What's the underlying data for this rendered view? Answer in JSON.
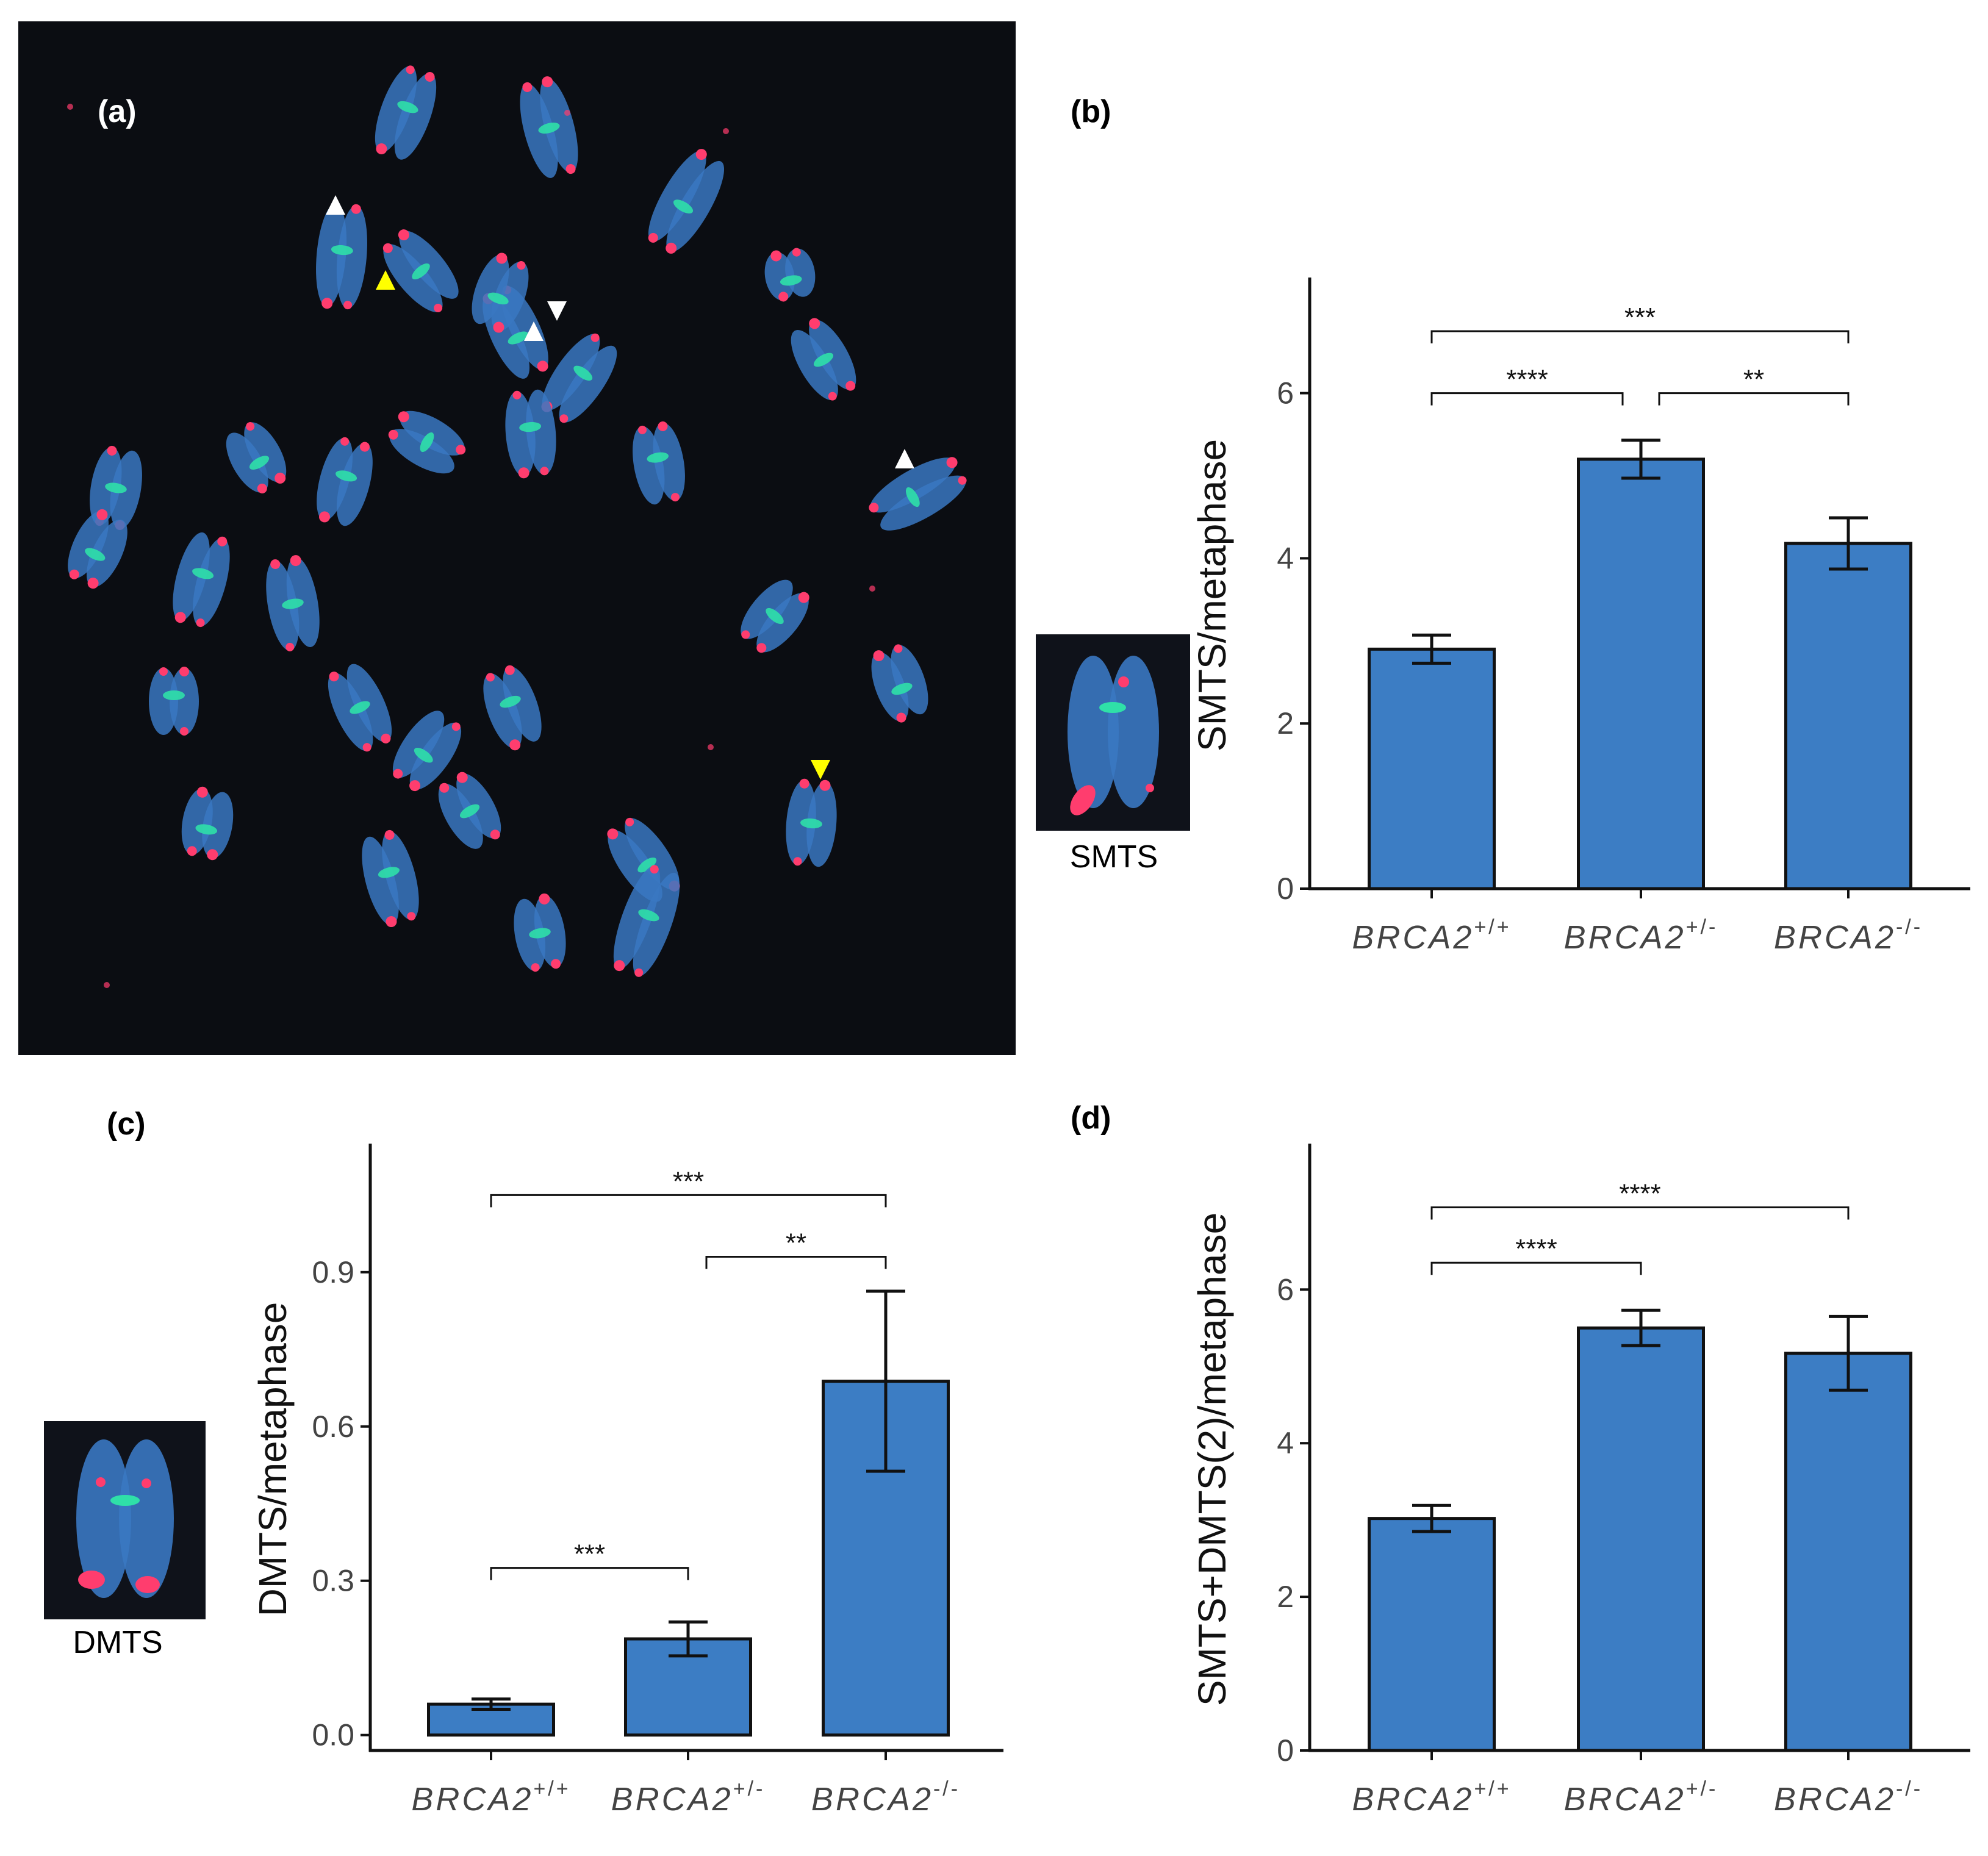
{
  "panels": {
    "a": "(a)",
    "b": "(b)",
    "c": "(c)",
    "d": "(d)"
  },
  "insets": {
    "smts_label": "SMTS",
    "dmts_label": "DMTS"
  },
  "colors": {
    "bar_fill": "#3c7dc4",
    "bar_stroke": "#111111",
    "micro_bg": "#0b0d12",
    "chromosome": "#3a78c2",
    "telomere": "#ff3d6e",
    "centromere": "#2fe0a8",
    "arrow_white": "#ffffff",
    "arrow_yellow": "#ffff00"
  },
  "chart_data": [
    {
      "id": "b",
      "type": "bar",
      "title": "",
      "xlabel": "",
      "ylabel": "SMTS/metaphase",
      "categories": [
        {
          "gene": "BRCA2",
          "sup": "+/+"
        },
        {
          "gene": "BRCA2",
          "sup": "+/-"
        },
        {
          "gene": "BRCA2",
          "sup": "-/-"
        }
      ],
      "values": [
        2.9,
        5.2,
        4.18
      ],
      "errors": [
        0.17,
        0.23,
        0.31
      ],
      "ylim": [
        0,
        7.4
      ],
      "yticks": [
        0,
        2,
        4,
        6
      ],
      "tick_labels": [
        "0",
        "2",
        "4",
        "6"
      ],
      "significance": [
        {
          "from": 0,
          "to": 2,
          "y": 6.75,
          "label": "***"
        },
        {
          "from": 0,
          "to": 1,
          "y": 6.0,
          "label": "****"
        },
        {
          "from": 1,
          "to": 2,
          "y": 6.0,
          "label": "**"
        }
      ]
    },
    {
      "id": "c",
      "type": "bar",
      "title": "",
      "xlabel": "",
      "ylabel": "DMTS/metaphase",
      "categories": [
        {
          "gene": "BRCA2",
          "sup": "+/+"
        },
        {
          "gene": "BRCA2",
          "sup": "+/-"
        },
        {
          "gene": "BRCA2",
          "sup": "-/-"
        }
      ],
      "values": [
        0.06,
        0.187,
        0.688
      ],
      "errors": [
        0.01,
        0.033,
        0.175
      ],
      "ylim": [
        -0.03,
        1.15
      ],
      "yticks": [
        0,
        0.3,
        0.6,
        0.9
      ],
      "tick_labels": [
        "0.0",
        "0.3",
        "0.6",
        "0.9"
      ],
      "significance": [
        {
          "from": 0,
          "to": 2,
          "y": 1.05,
          "label": "***"
        },
        {
          "from": 1,
          "to": 2,
          "y": 0.93,
          "label": "**"
        },
        {
          "from": 0,
          "to": 1,
          "y": 0.325,
          "label": "***"
        }
      ]
    },
    {
      "id": "d",
      "type": "bar",
      "title": "",
      "xlabel": "",
      "ylabel": "SMTS+DMTS(2)/metaphase",
      "categories": [
        {
          "gene": "BRCA2",
          "sup": "+/+"
        },
        {
          "gene": "BRCA2",
          "sup": "+/-"
        },
        {
          "gene": "BRCA2",
          "sup": "-/-"
        }
      ],
      "values": [
        3.02,
        5.5,
        5.17
      ],
      "errors": [
        0.17,
        0.23,
        0.48
      ],
      "ylim": [
        0,
        7.9
      ],
      "yticks": [
        0,
        2,
        4,
        6
      ],
      "tick_labels": [
        "0",
        "2",
        "4",
        "6"
      ],
      "significance": [
        {
          "from": 0,
          "to": 2,
          "y": 7.07,
          "label": "****"
        },
        {
          "from": 0,
          "to": 1,
          "y": 6.35,
          "label": "****"
        }
      ]
    }
  ]
}
